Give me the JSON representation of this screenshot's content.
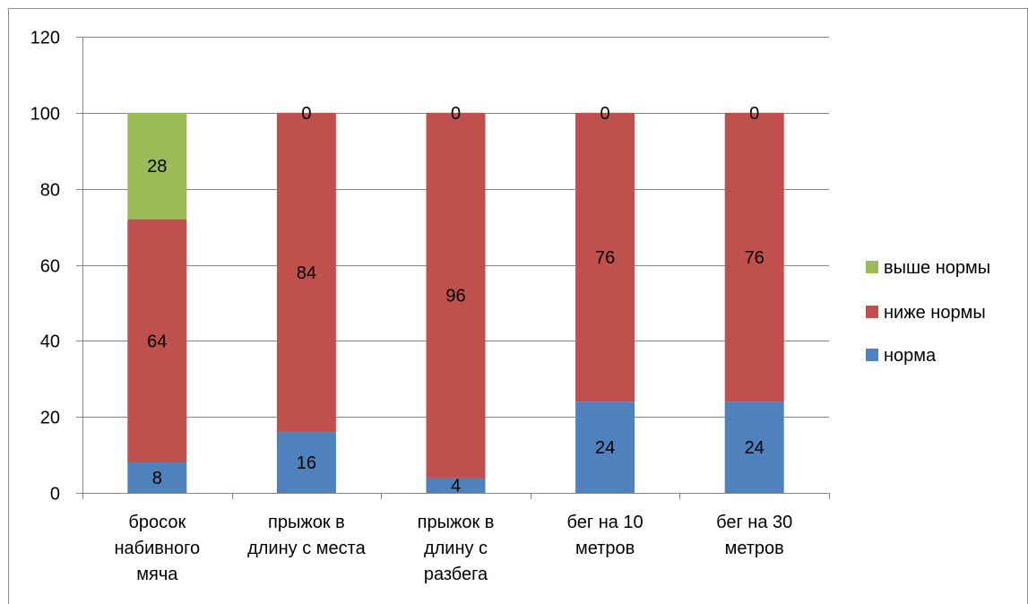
{
  "chart_data": {
    "type": "bar",
    "stacked": true,
    "categories": [
      [
        "бросок",
        "набивного",
        "мяча"
      ],
      [
        "прыжок в",
        "длину с места"
      ],
      [
        "прыжок в",
        "длину с",
        "разбега"
      ],
      [
        "бег на 10",
        "метров"
      ],
      [
        "бег на 30",
        "метров"
      ]
    ],
    "series": [
      {
        "name": "норма",
        "color": "#4f81bd",
        "values": [
          8,
          16,
          4,
          24,
          24
        ]
      },
      {
        "name": "ниже нормы",
        "color": "#c0504d",
        "values": [
          64,
          84,
          96,
          76,
          76
        ]
      },
      {
        "name": "выше нормы",
        "color": "#9bbb59",
        "values": [
          28,
          0,
          0,
          0,
          0
        ]
      }
    ],
    "ylim": [
      0,
      120
    ],
    "yticks": [
      0,
      20,
      40,
      60,
      80,
      100,
      120
    ],
    "grid": true,
    "legend_position": "right",
    "legend_order": [
      "выше нормы",
      "ниже нормы",
      "норма"
    ]
  }
}
